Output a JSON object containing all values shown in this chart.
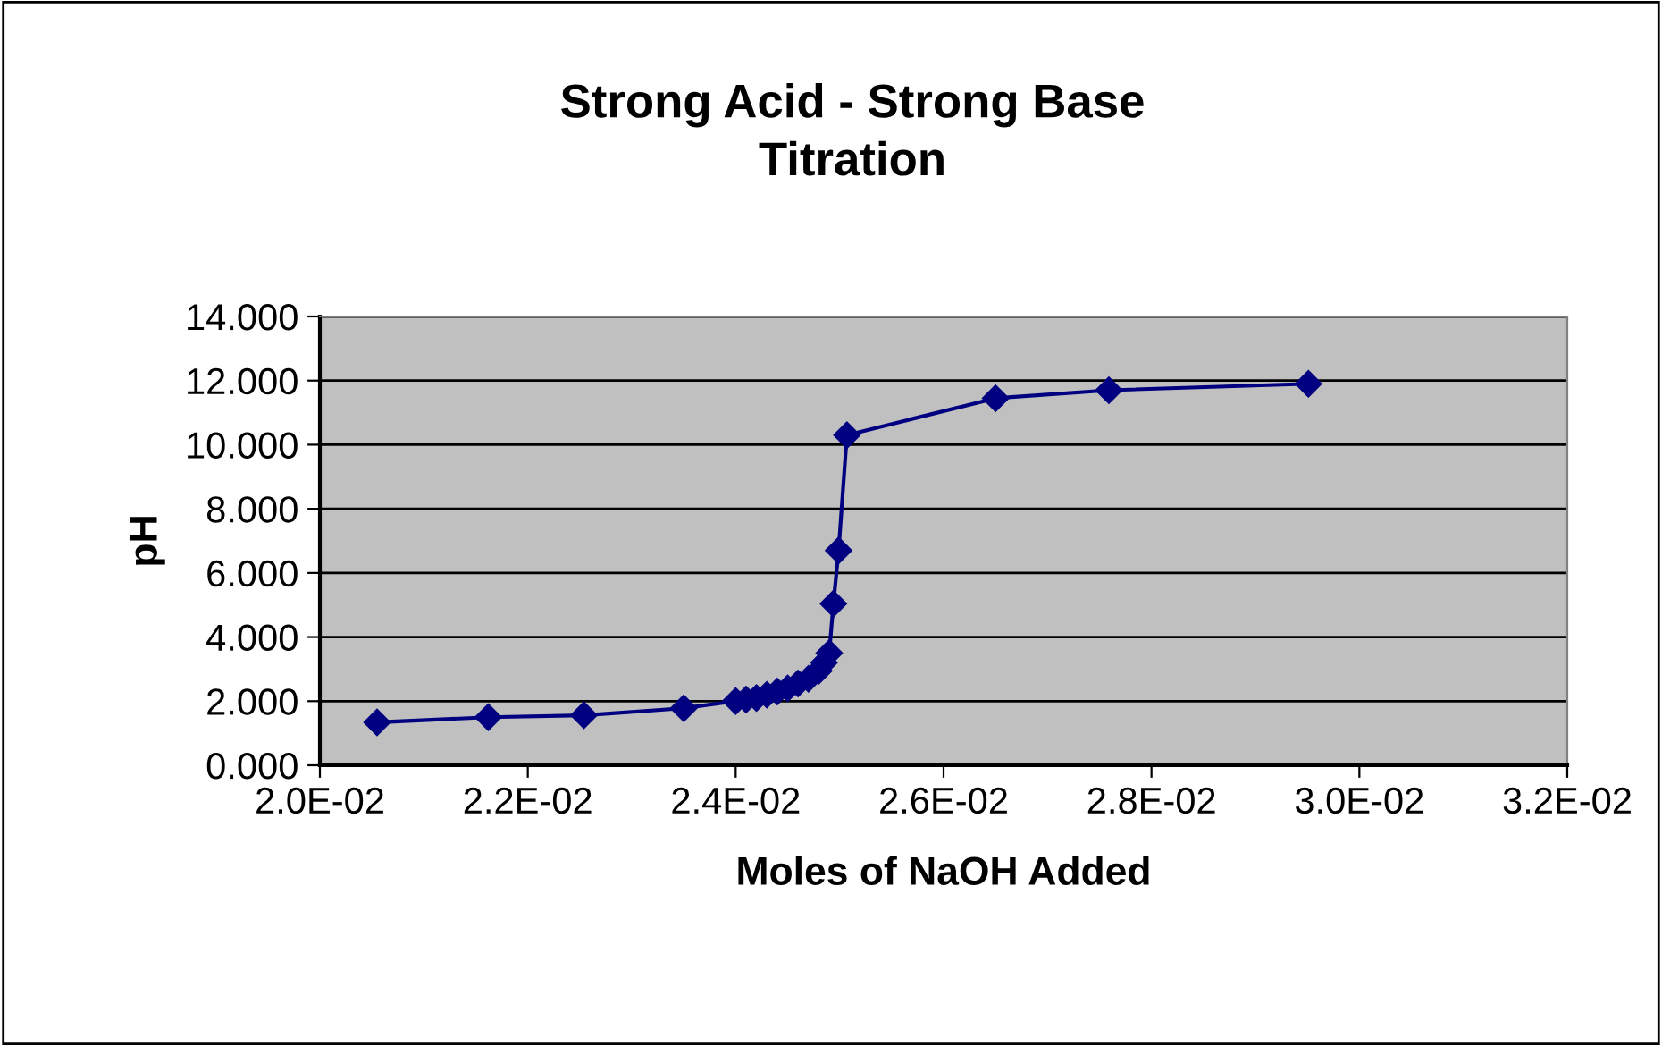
{
  "chart_data": {
    "type": "line",
    "title": "Strong Acid - Strong Base\nTitration",
    "xlabel": "Moles of NaOH Added",
    "ylabel": "pH",
    "series": [
      {
        "color": "#000080",
        "x": [
          0.02055,
          0.02162,
          0.02254,
          0.0235,
          0.024,
          0.0241,
          0.0242,
          0.0243,
          0.0244,
          0.0245,
          0.0246,
          0.0247,
          0.0248,
          0.02485,
          0.0249,
          0.02494,
          0.02499,
          0.02507,
          0.0265,
          0.02759,
          0.02951
        ],
        "values": [
          1.34,
          1.5,
          1.56,
          1.78,
          2.0,
          2.05,
          2.1,
          2.2,
          2.3,
          2.4,
          2.55,
          2.7,
          2.95,
          3.2,
          3.5,
          5.04,
          6.7,
          10.3,
          11.45,
          11.7,
          11.9
        ]
      }
    ],
    "xlim": [
      0.02,
      0.032
    ],
    "xticks": [
      {
        "value": 0.02,
        "label": "2.0E-02"
      },
      {
        "value": 0.022,
        "label": "2.2E-02"
      },
      {
        "value": 0.024,
        "label": "2.4E-02"
      },
      {
        "value": 0.026,
        "label": "2.6E-02"
      },
      {
        "value": 0.028,
        "label": "2.8E-02"
      },
      {
        "value": 0.03,
        "label": "3.0E-02"
      },
      {
        "value": 0.032,
        "label": "3.2E-02"
      }
    ],
    "ylim": [
      0,
      14
    ],
    "yticks": [
      {
        "value": 0,
        "label": "0.000"
      },
      {
        "value": 2,
        "label": "2.000"
      },
      {
        "value": 4,
        "label": "4.000"
      },
      {
        "value": 6,
        "label": "6.000"
      },
      {
        "value": 8,
        "label": "8.000"
      },
      {
        "value": 10,
        "label": "10.000"
      },
      {
        "value": 12,
        "label": "12.000"
      },
      {
        "value": 14,
        "label": "14.000"
      }
    ],
    "grid": "y",
    "legend": false,
    "marker": "diamond",
    "line_style": "solid"
  }
}
